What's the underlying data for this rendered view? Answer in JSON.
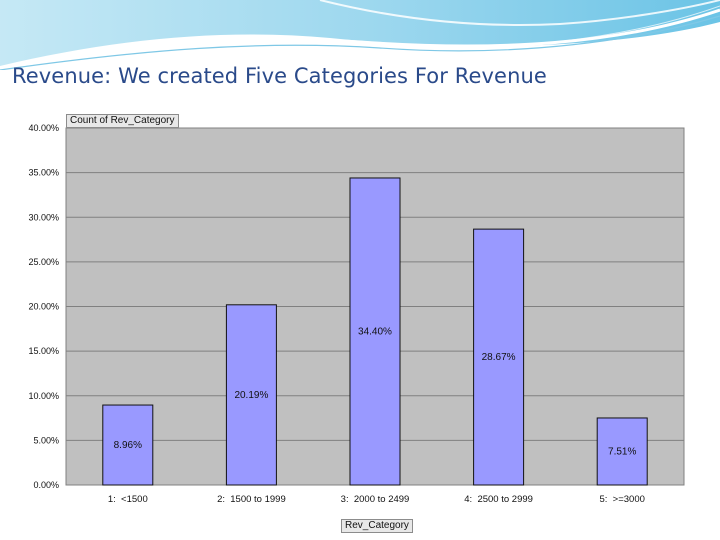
{
  "slide": {
    "title": "Revenue: We created Five Categories For Revenue"
  },
  "pivot_fields": {
    "data_field": "Count of Rev_Category",
    "row_field": "Rev_Category"
  },
  "colors": {
    "bar_fill": "#9999ff",
    "bar_stroke": "#111111",
    "plot_background": "#c0c0c0",
    "gridline": "#808080",
    "title": "#2a4a8a"
  },
  "chart_data": {
    "type": "bar",
    "categories": [
      "1:  <1500",
      "2:  1500 to 1999",
      "3:  2000 to 2499",
      "4:  2500 to 2999",
      "5:  >=3000"
    ],
    "values": [
      8.96,
      20.19,
      34.4,
      28.67,
      7.51
    ],
    "data_labels": [
      "8.96%",
      "20.19%",
      "34.40%",
      "28.67%",
      "7.51%"
    ],
    "y_ticks": [
      "0.00%",
      "5.00%",
      "10.00%",
      "15.00%",
      "20.00%",
      "25.00%",
      "30.00%",
      "35.00%",
      "40.00%"
    ],
    "ylim": [
      0,
      40
    ],
    "y_step": 5,
    "grid": true,
    "xlabel": "Rev_Category",
    "ylabel": "Count of Rev_Category"
  }
}
